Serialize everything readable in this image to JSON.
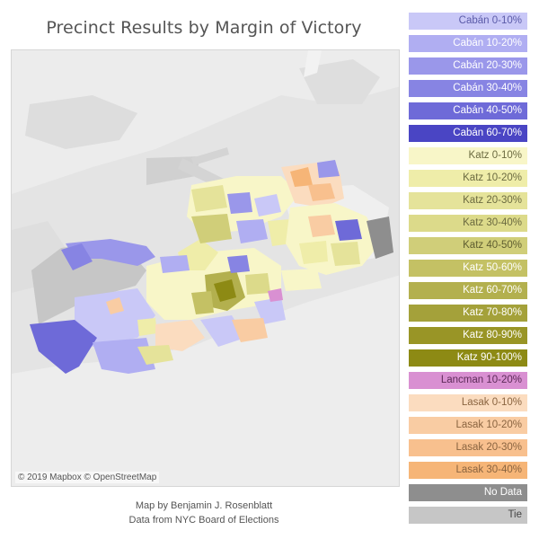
{
  "title": "Precinct Results by Margin of Victory",
  "attribution": "© 2019 Mapbox © OpenStreetMap",
  "credits": {
    "line1": "Map by Benjamin J. Rosenblatt",
    "line2": "Data from NYC Board of Elections"
  },
  "legend": [
    {
      "label": "Cabán 0-10%",
      "color": "#c9c8f7",
      "text": "#5a5aa8"
    },
    {
      "label": "Cabán 10-20%",
      "color": "#b0aef2",
      "text": "#ffffff"
    },
    {
      "label": "Cabán 20-30%",
      "color": "#9a97ea",
      "text": "#ffffff"
    },
    {
      "label": "Cabán 30-40%",
      "color": "#8784e3",
      "text": "#ffffff"
    },
    {
      "label": "Cabán 40-50%",
      "color": "#6e6ad8",
      "text": "#ffffff"
    },
    {
      "label": "Cabán 60-70%",
      "color": "#4a45c4",
      "text": "#ffffff"
    },
    {
      "label": "Katz 0-10%",
      "color": "#f8f6c8",
      "text": "#6b6a40"
    },
    {
      "label": "Katz 10-20%",
      "color": "#efeda9",
      "text": "#6b6a40"
    },
    {
      "label": "Katz 20-30%",
      "color": "#e5e39a",
      "text": "#6b6a40"
    },
    {
      "label": "Katz 30-40%",
      "color": "#dcda8a",
      "text": "#6b6a40"
    },
    {
      "label": "Katz 40-50%",
      "color": "#d0ce79",
      "text": "#5e5d30"
    },
    {
      "label": "Katz 50-60%",
      "color": "#c4c164",
      "text": "#ffffff"
    },
    {
      "label": "Katz 60-70%",
      "color": "#b3b04e",
      "text": "#ffffff"
    },
    {
      "label": "Katz 70-80%",
      "color": "#a4a13a",
      "text": "#ffffff"
    },
    {
      "label": "Katz 80-90%",
      "color": "#999526",
      "text": "#ffffff"
    },
    {
      "label": "Katz 90-100%",
      "color": "#8d8a14",
      "text": "#ffffff"
    },
    {
      "label": "Lancman 10-20%",
      "color": "#d990d2",
      "text": "#5c2a58"
    },
    {
      "label": "Lasak 0-10%",
      "color": "#fbdcbf",
      "text": "#8a6440"
    },
    {
      "label": "Lasak 10-20%",
      "color": "#f9cca3",
      "text": "#8a6440"
    },
    {
      "label": "Lasak 20-30%",
      "color": "#f8c08e",
      "text": "#8a6440"
    },
    {
      "label": "Lasak 30-40%",
      "color": "#f6b577",
      "text": "#8a6440"
    },
    {
      "label": "No Data",
      "color": "#8e8e8e",
      "text": "#ffffff"
    },
    {
      "label": "Tie",
      "color": "#c6c6c6",
      "text": "#444444"
    }
  ]
}
